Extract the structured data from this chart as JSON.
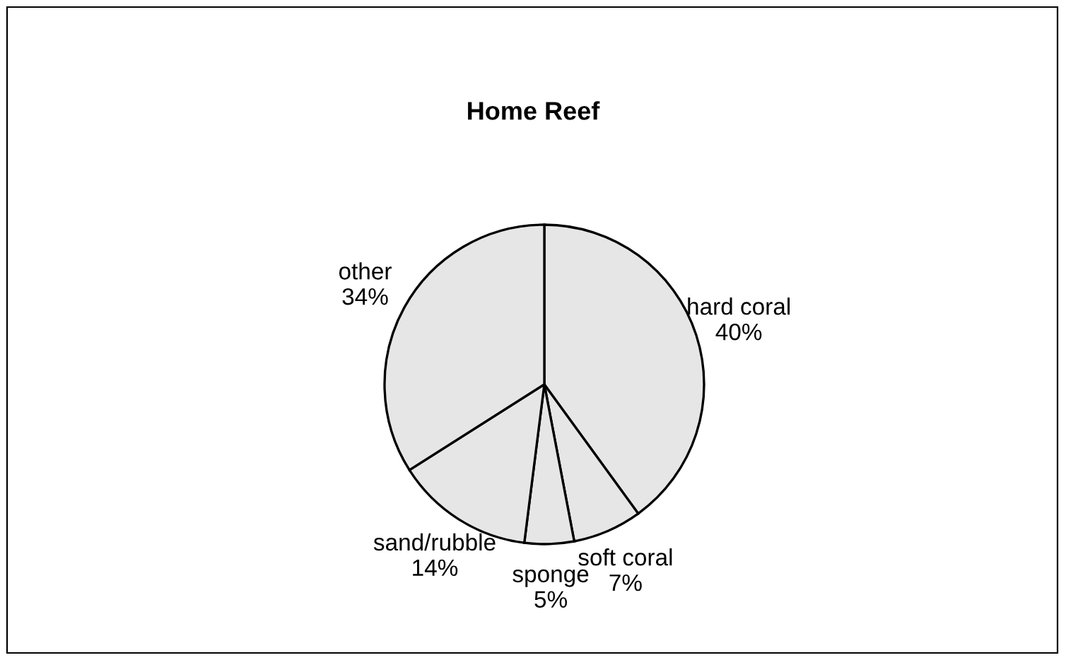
{
  "chart_data": {
    "type": "pie",
    "title": "Home Reef",
    "categories": [
      "hard coral",
      "soft coral",
      "sponge",
      "sand/rubble",
      "other"
    ],
    "values": [
      40,
      7,
      5,
      14,
      34
    ],
    "value_labels": [
      "40%",
      "7%",
      "5%",
      "14%",
      "34%"
    ],
    "colors": [
      "#e6e6e6",
      "#e6e6e6",
      "#e6e6e6",
      "#e6e6e6",
      "#e6e6e6"
    ],
    "legend": false
  }
}
